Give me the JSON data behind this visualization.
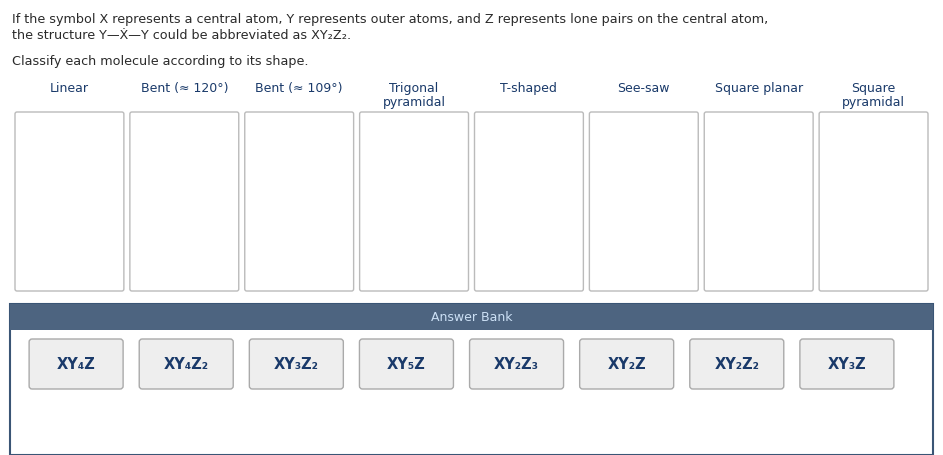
{
  "intro_line1": "If the symbol X represents a central atom, Y represents outer atoms, and Z represents lone pairs on the central atom,",
  "intro_line2_parts": [
    {
      "text": "the structure Y—",
      "style": "normal"
    },
    {
      "text": "X",
      "style": "dotted"
    },
    {
      "text": "—Y could be abbreviated as XY",
      "style": "normal"
    },
    {
      "text": "2",
      "style": "sub"
    },
    {
      "text": "Z",
      "style": "normal"
    },
    {
      "text": "2",
      "style": "sub"
    },
    {
      "text": ".",
      "style": "normal"
    }
  ],
  "classify_text": "Classify each molecule according to its shape.",
  "column_labels": [
    "Linear",
    "Bent (≈ 120°)  Bent (≈ 109°)",
    "Trigonal\npyramidal",
    "T-shaped",
    "See-saw",
    "Square planar",
    "Square\npyramidal"
  ],
  "column_labels_separate": [
    "Linear",
    "Bent (≈ 120°)",
    "Bent (≈ 109°)",
    "Trigonal\npyramidal",
    "T-shaped",
    "See-saw",
    "Square planar",
    "Square\npyramidal"
  ],
  "answer_bank_label": "Answer Bank",
  "answer_items": [
    "XY₄Z",
    "XY₄Z₂",
    "XY₃Z₂",
    "XY₅Z",
    "XY₂Z₃",
    "XY₂Z",
    "XY₂Z₂",
    "XY₃Z"
  ],
  "bg_color": "#ffffff",
  "text_color": "#2a2a2a",
  "label_color": "#1a3a6a",
  "box_border_color": "#bbbbbb",
  "answer_bank_bg": "#4d6480",
  "answer_bank_text_color": "#cce0f5",
  "answer_item_bg": "#eeeeee",
  "answer_item_border": "#aaaaaa",
  "outer_border_color": "#3a5575"
}
